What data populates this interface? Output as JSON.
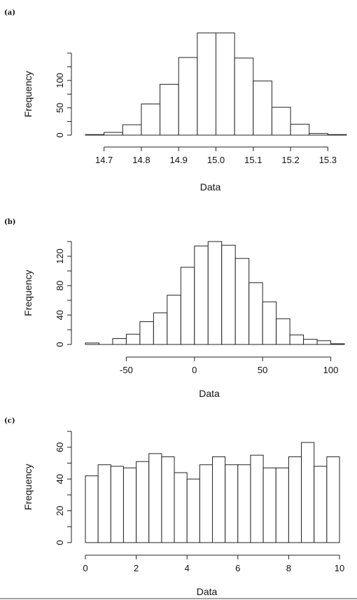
{
  "chart_data": [
    {
      "type": "bar",
      "panel_label": "(a)",
      "xlabel": "Data",
      "ylabel": "Frequency",
      "bin_edges": [
        14.65,
        14.7,
        14.75,
        14.8,
        14.85,
        14.9,
        14.95,
        15.0,
        15.05,
        15.1,
        15.15,
        15.2,
        15.25,
        15.3,
        15.35
      ],
      "values": [
        1,
        5,
        19,
        57,
        93,
        142,
        187,
        187,
        141,
        99,
        51,
        20,
        3,
        1
      ],
      "xticks": [
        "14.7",
        "14.8",
        "14.9",
        "15.0",
        "15.1",
        "15.2",
        "15.3"
      ],
      "xtick_values": [
        14.7,
        14.8,
        14.9,
        15.0,
        15.1,
        15.2,
        15.3
      ],
      "yticks": [
        "0",
        "50",
        "100"
      ],
      "ytick_values": [
        0,
        50,
        100
      ],
      "xlim": [
        14.65,
        15.35
      ],
      "ylim": [
        0,
        187
      ],
      "y_axis_max": 150
    },
    {
      "type": "bar",
      "panel_label": "(b)",
      "xlabel": "Data",
      "ylabel": "Frequency",
      "bin_edges": [
        -80,
        -70,
        -60,
        -50,
        -40,
        -30,
        -20,
        -10,
        0,
        10,
        20,
        30,
        40,
        50,
        60,
        70,
        80,
        90,
        100,
        110
      ],
      "values": [
        2,
        0,
        8,
        14,
        31,
        43,
        67,
        105,
        134,
        140,
        135,
        117,
        84,
        58,
        35,
        13,
        7,
        5,
        1
      ],
      "xticks": [
        "-50",
        "0",
        "50",
        "100"
      ],
      "xtick_values": [
        -50,
        0,
        50,
        100
      ],
      "yticks": [
        "0",
        "40",
        "80",
        "120"
      ],
      "ytick_values": [
        0,
        40,
        80,
        120
      ],
      "xlim": [
        -80,
        110
      ],
      "ylim": [
        0,
        140
      ],
      "y_axis_max": 140
    },
    {
      "type": "bar",
      "panel_label": "(c)",
      "xlabel": "Data",
      "ylabel": "Frequency",
      "bin_edges": [
        0,
        0.5,
        1,
        1.5,
        2,
        2.5,
        3,
        3.5,
        4,
        4.5,
        5,
        5.5,
        6,
        6.5,
        7,
        7.5,
        8,
        8.5,
        9,
        9.5,
        10
      ],
      "values": [
        42,
        49,
        48,
        47,
        51,
        56,
        54,
        44,
        40,
        49,
        54,
        49,
        49,
        55,
        47,
        47,
        54,
        63,
        48,
        54
      ],
      "xticks": [
        "0",
        "2",
        "4",
        "6",
        "8",
        "10"
      ],
      "xtick_values": [
        0,
        2,
        4,
        6,
        8,
        10
      ],
      "yticks": [
        "0",
        "20",
        "40",
        "60"
      ],
      "ytick_values": [
        0,
        20,
        40,
        60
      ],
      "xlim": [
        0,
        10
      ],
      "ylim": [
        0,
        63
      ],
      "y_axis_max": 70
    }
  ]
}
